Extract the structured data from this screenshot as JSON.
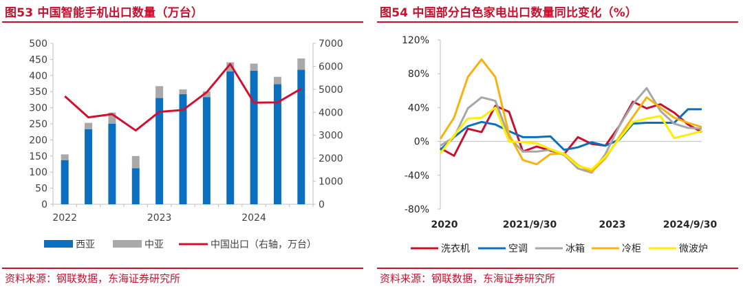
{
  "left": {
    "title": "图53  中国智能手机出口数量（万台）",
    "source": "资料来源：钢联数据，东海证券研究所",
    "colors": {
      "west": "#0b6fc0",
      "central": "#a9a9a9",
      "line": "#d0102e",
      "axis": "#bfbfbf",
      "text": "#404040"
    }
  },
  "right": {
    "title": "图54  中国部分白色家电出口数量同比变化（%）",
    "source": "资料来源：钢联数据，东海证券研究所",
    "colors": {
      "洗衣机": "#c8102e",
      "空调": "#0b6fc0",
      "冰箱": "#a6a6a6",
      "冷柜": "#f6b20f",
      "微波炉": "#ffee00"
    }
  },
  "chart_data": [
    {
      "type": "bar",
      "title": "中国智能手机出口数量（万台）",
      "stacked": true,
      "x_tick_labels": [
        "2022",
        "2023",
        "2024"
      ],
      "ylim": [
        0,
        500
      ],
      "y_ticks": [
        0,
        50,
        100,
        150,
        200,
        250,
        300,
        350,
        400,
        450,
        500
      ],
      "y2lim": [
        0,
        7000
      ],
      "y2_ticks": [
        0,
        1000,
        2000,
        3000,
        4000,
        5000,
        6000,
        7000
      ],
      "series": [
        {
          "name": "西亚",
          "kind": "bar",
          "axis": "left",
          "values": [
            137,
            233,
            250,
            112,
            330,
            342,
            333,
            413,
            415,
            373,
            418
          ]
        },
        {
          "name": "中亚",
          "kind": "bar",
          "axis": "left",
          "values": [
            18,
            20,
            35,
            38,
            37,
            15,
            18,
            28,
            22,
            23,
            35
          ]
        },
        {
          "name": "中国出口（右轴，万台）",
          "kind": "line",
          "axis": "right",
          "values": [
            4700,
            3780,
            3920,
            3210,
            4020,
            4100,
            4870,
            6100,
            4420,
            4430,
            5030
          ]
        }
      ],
      "legend_position": "bottom"
    },
    {
      "type": "line",
      "title": "中国部分白色家电出口数量同比变化（%）",
      "x_tick_labels": [
        "2020",
        "2021/9/30",
        "2023",
        "2024/9/30"
      ],
      "ylim": [
        -80,
        120
      ],
      "y_ticks": [
        "-80%",
        "-40%",
        "0%",
        "40%",
        "80%",
        "120%"
      ],
      "series": [
        {
          "name": "洗衣机",
          "values": [
            -8,
            -17,
            15,
            11,
            42,
            35,
            -12,
            -6,
            -11,
            -15,
            5,
            -3,
            -5,
            18,
            47,
            39,
            44,
            34,
            20,
            11
          ]
        },
        {
          "name": "空调",
          "values": [
            -10,
            5,
            18,
            23,
            20,
            12,
            5,
            5,
            6,
            -10,
            -7,
            -1,
            -5,
            2,
            21,
            22,
            22,
            22,
            38,
            38
          ]
        },
        {
          "name": "冰箱",
          "values": [
            -5,
            5,
            39,
            52,
            48,
            5,
            -12,
            -12,
            -10,
            -16,
            -32,
            -37,
            -15,
            18,
            44,
            63,
            36,
            21,
            16,
            15
          ]
        },
        {
          "name": "冷柜",
          "values": [
            3,
            28,
            76,
            97,
            76,
            8,
            -22,
            -27,
            -15,
            -14,
            -28,
            -36,
            -20,
            5,
            29,
            52,
            40,
            28,
            22,
            17
          ]
        },
        {
          "name": "微波炉",
          "values": [
            -14,
            7,
            27,
            28,
            40,
            0,
            -1,
            -2,
            -9,
            -15,
            -29,
            -33,
            -18,
            3,
            23,
            27,
            30,
            4,
            8,
            12
          ]
        }
      ],
      "legend_position": "bottom"
    }
  ]
}
